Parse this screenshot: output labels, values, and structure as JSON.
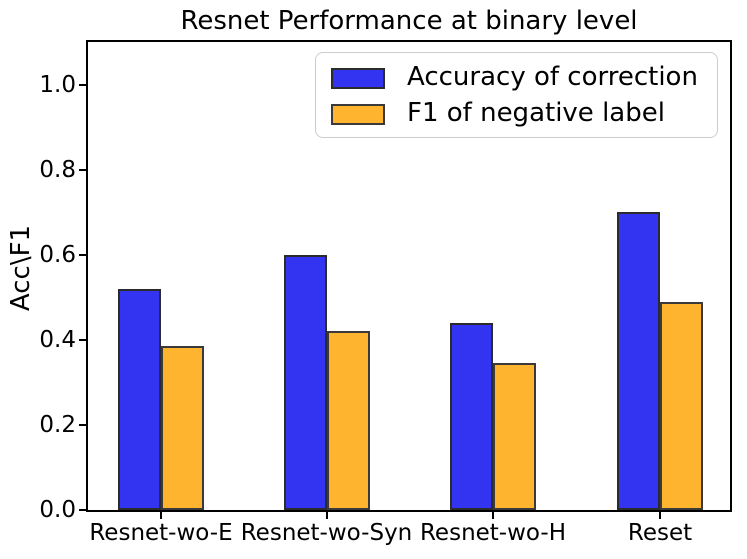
{
  "chart_data": {
    "type": "bar",
    "title": "Resnet Performance at binary level",
    "ylabel": "Acc\\F1",
    "xlabel": "",
    "categories": [
      "Resnet-wo-E",
      "Resnet-wo-Syn",
      "Resnet-wo-H",
      "Reset"
    ],
    "series": [
      {
        "name": "Accuracy of correction",
        "color": "#3333f2",
        "edge_color": "#2b2b2b",
        "values": [
          0.52,
          0.6,
          0.44,
          0.7
        ]
      },
      {
        "name": "F1 of negative label",
        "color": "#ffb42f",
        "edge_color": "#3a3a3a",
        "values": [
          0.385,
          0.42,
          0.345,
          0.49
        ]
      }
    ],
    "ylim": [
      0,
      1.1
    ],
    "yticks": [
      "0.0",
      "0.2",
      "0.4",
      "0.6",
      "0.8",
      "1.0"
    ],
    "grid": false,
    "legend_position": "upper right"
  }
}
